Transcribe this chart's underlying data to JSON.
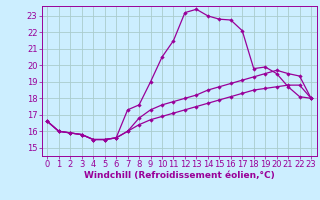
{
  "xlabel": "Windchill (Refroidissement éolien,°C)",
  "xlim": [
    -0.5,
    23.5
  ],
  "ylim": [
    14.5,
    23.6
  ],
  "yticks": [
    15,
    16,
    17,
    18,
    19,
    20,
    21,
    22,
    23
  ],
  "xticks": [
    0,
    1,
    2,
    3,
    4,
    5,
    6,
    7,
    8,
    9,
    10,
    11,
    12,
    13,
    14,
    15,
    16,
    17,
    18,
    19,
    20,
    21,
    22,
    23
  ],
  "background_color": "#cceeff",
  "grid_color": "#aacccc",
  "line_color": "#990099",
  "line1_y": [
    16.6,
    16.0,
    15.9,
    15.8,
    15.5,
    15.5,
    15.6,
    17.3,
    17.6,
    19.0,
    20.5,
    21.5,
    23.2,
    23.4,
    23.0,
    22.8,
    22.75,
    22.1,
    19.8,
    19.9,
    19.5,
    18.7,
    18.1,
    18.0
  ],
  "line2_y": [
    16.6,
    16.0,
    15.9,
    15.8,
    15.5,
    15.5,
    15.6,
    16.0,
    16.8,
    17.3,
    17.6,
    17.8,
    18.0,
    18.2,
    18.5,
    18.7,
    18.9,
    19.1,
    19.3,
    19.5,
    19.7,
    19.5,
    19.35,
    18.0
  ],
  "line3_y": [
    16.6,
    16.0,
    15.9,
    15.8,
    15.5,
    15.5,
    15.6,
    16.0,
    16.4,
    16.7,
    16.9,
    17.1,
    17.3,
    17.5,
    17.7,
    17.9,
    18.1,
    18.3,
    18.5,
    18.6,
    18.7,
    18.8,
    18.8,
    18.0
  ],
  "marker": "D",
  "marker_size": 2.2,
  "line_width": 0.9,
  "tick_fontsize": 6.0,
  "xlabel_fontsize": 6.5
}
